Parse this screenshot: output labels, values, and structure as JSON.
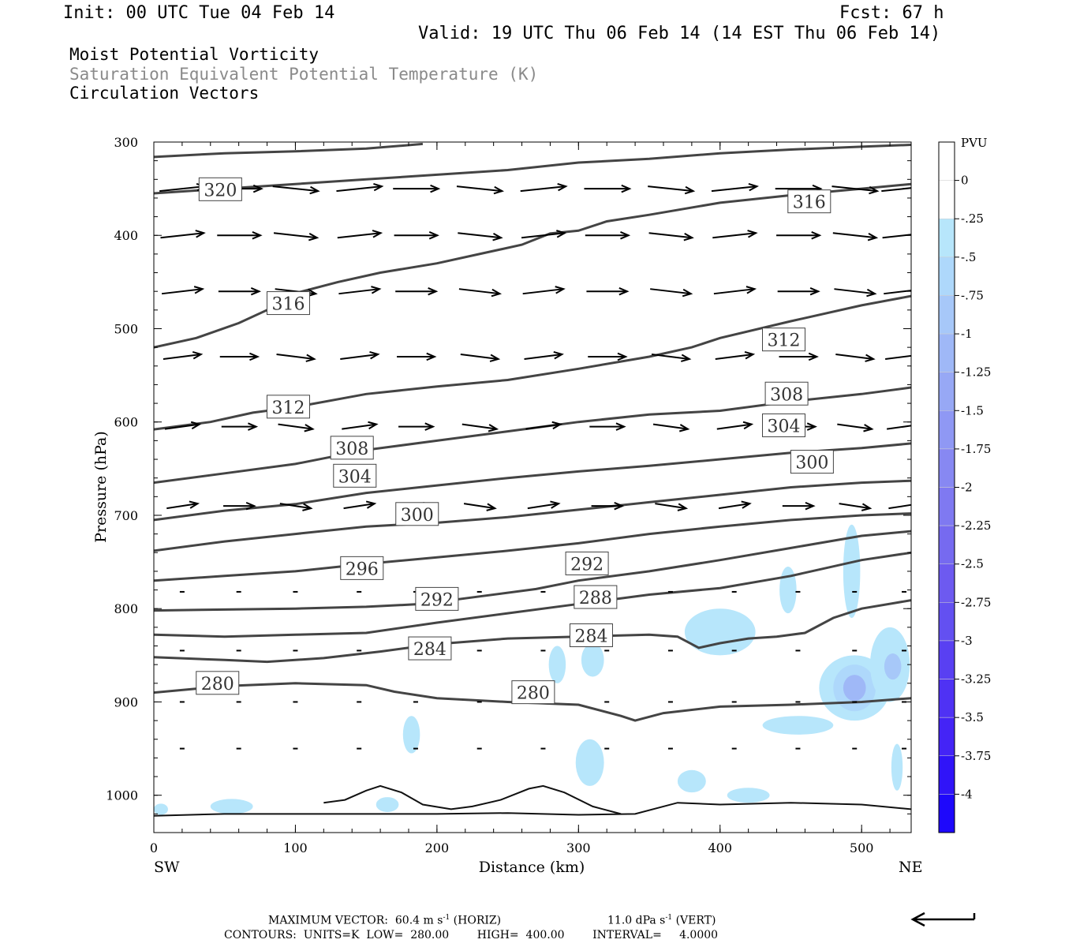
{
  "header": {
    "init": "Init: 00 UTC Tue 04 Feb 14",
    "fcst": "Fcst:   67 h",
    "valid": "Valid: 19 UTC Thu 06 Feb 14 (14 EST Thu 06 Feb 14)"
  },
  "fields": {
    "shaded": "Moist Potential Vorticity",
    "contour": "Saturation Equivalent Potential Temperature (K)",
    "vectors": "Circulation Vectors"
  },
  "footer": {
    "max_vector_label": "MAXIMUM VECTOR:",
    "max_horiz_value": "60.4",
    "max_horiz_unit": "m s",
    "max_horiz_tag": "(HORIZ)",
    "max_vert_value": "11.0",
    "max_vert_unit": "dPa s",
    "max_vert_tag": "(VERT)",
    "exponent": "-1",
    "contours_line": "CONTOURS:  UNITS=K  LOW=  280.00        HIGH=  400.00        INTERVAL=     4.0000"
  },
  "chart_data": {
    "type": "cross-section contour",
    "xlabel": "Distance (km)",
    "ylabel": "Pressure (hPa)",
    "x_ticks": [
      0,
      100,
      200,
      300,
      400,
      500
    ],
    "y_ticks": [
      300,
      400,
      500,
      600,
      700,
      800,
      900,
      1000
    ],
    "xlim": [
      0,
      535
    ],
    "ylim": [
      300,
      1040
    ],
    "x_end_labels": {
      "left": "SW",
      "right": "NE"
    },
    "colorbar": {
      "unit": "PVU",
      "levels": [
        "0",
        "-.25",
        "-.5",
        "-.75",
        "-1",
        "-1.25",
        "-1.5",
        "-1.75",
        "-2",
        "-2.25",
        "-2.5",
        "-2.75",
        "-3",
        "-3.25",
        "-3.5",
        "-3.75",
        "-4"
      ],
      "colors": [
        "#ffffff",
        "#ffffff",
        "#b7e6fb",
        "#aed8fb",
        "#a7c8f9",
        "#9fb8f7",
        "#97a8f5",
        "#8f98f4",
        "#8788f2",
        "#7f79f1",
        "#766af0",
        "#6d5af0",
        "#6350f1",
        "#5940f2",
        "#4f32f4",
        "#4424f6",
        "#3014f8",
        "#1e08fb"
      ]
    },
    "theta_es_contours": [
      {
        "label": "280",
        "points": [
          [
            0,
            890
          ],
          [
            50,
            883
          ],
          [
            100,
            880
          ],
          [
            150,
            882
          ],
          [
            170,
            889
          ],
          [
            200,
            896
          ],
          [
            250,
            900
          ],
          [
            300,
            903
          ],
          [
            330,
            915
          ],
          [
            340,
            920
          ],
          [
            360,
            912
          ],
          [
            400,
            905
          ],
          [
            450,
            903
          ],
          [
            500,
            900
          ],
          [
            535,
            896
          ]
        ],
        "label_at": [
          [
            45,
            880
          ],
          [
            268,
            890
          ]
        ]
      },
      {
        "label": "284",
        "points": [
          [
            0,
            852
          ],
          [
            50,
            855
          ],
          [
            80,
            857
          ],
          [
            120,
            853
          ],
          [
            160,
            846
          ],
          [
            200,
            838
          ],
          [
            250,
            832
          ],
          [
            300,
            830
          ],
          [
            350,
            828
          ],
          [
            370,
            830
          ],
          [
            385,
            842
          ],
          [
            400,
            837
          ],
          [
            420,
            832
          ],
          [
            440,
            830
          ],
          [
            460,
            826
          ],
          [
            480,
            810
          ],
          [
            500,
            800
          ],
          [
            535,
            791
          ]
        ],
        "label_at": [
          [
            195,
            843
          ],
          [
            309,
            829
          ]
        ]
      },
      {
        "label": "288",
        "points": [
          [
            0,
            828
          ],
          [
            50,
            830
          ],
          [
            100,
            828
          ],
          [
            150,
            826
          ],
          [
            200,
            815
          ],
          [
            250,
            805
          ],
          [
            300,
            795
          ],
          [
            350,
            785
          ],
          [
            400,
            778
          ],
          [
            450,
            765
          ],
          [
            500,
            748
          ],
          [
            535,
            740
          ]
        ],
        "label_at": [
          [
            312,
            788
          ]
        ]
      },
      {
        "label": "292",
        "points": [
          [
            0,
            802
          ],
          [
            50,
            801
          ],
          [
            100,
            800
          ],
          [
            150,
            798
          ],
          [
            190,
            795
          ],
          [
            230,
            787
          ],
          [
            270,
            779
          ],
          [
            300,
            770
          ],
          [
            350,
            760
          ],
          [
            400,
            748
          ],
          [
            450,
            735
          ],
          [
            500,
            722
          ],
          [
            535,
            717
          ]
        ],
        "label_at": [
          [
            200,
            790
          ],
          [
            306,
            752
          ]
        ]
      },
      {
        "label": "296",
        "points": [
          [
            0,
            770
          ],
          [
            50,
            765
          ],
          [
            100,
            760
          ],
          [
            150,
            752
          ],
          [
            200,
            745
          ],
          [
            250,
            738
          ],
          [
            300,
            730
          ],
          [
            350,
            720
          ],
          [
            400,
            712
          ],
          [
            450,
            705
          ],
          [
            500,
            700
          ],
          [
            535,
            698
          ]
        ],
        "label_at": [
          [
            147,
            757
          ]
        ]
      },
      {
        "label": "300",
        "points": [
          [
            0,
            738
          ],
          [
            50,
            728
          ],
          [
            100,
            720
          ],
          [
            150,
            712
          ],
          [
            200,
            708
          ],
          [
            250,
            702
          ],
          [
            300,
            694
          ],
          [
            350,
            686
          ],
          [
            400,
            678
          ],
          [
            450,
            670
          ],
          [
            500,
            665
          ],
          [
            535,
            663
          ]
        ],
        "label_at": [
          [
            186,
            699
          ],
          [
            465,
            643
          ]
        ]
      },
      {
        "label": "304",
        "points": [
          [
            0,
            705
          ],
          [
            50,
            695
          ],
          [
            100,
            688
          ],
          [
            150,
            676
          ],
          [
            200,
            668
          ],
          [
            250,
            660
          ],
          [
            300,
            653
          ],
          [
            350,
            647
          ],
          [
            400,
            640
          ],
          [
            450,
            633
          ],
          [
            500,
            628
          ],
          [
            535,
            623
          ]
        ],
        "label_at": [
          [
            142,
            658
          ],
          [
            445,
            604
          ]
        ]
      },
      {
        "label": "308",
        "points": [
          [
            0,
            665
          ],
          [
            50,
            655
          ],
          [
            100,
            645
          ],
          [
            150,
            630
          ],
          [
            200,
            620
          ],
          [
            250,
            610
          ],
          [
            300,
            600
          ],
          [
            350,
            592
          ],
          [
            400,
            588
          ],
          [
            450,
            578
          ],
          [
            500,
            570
          ],
          [
            535,
            563
          ]
        ],
        "label_at": [
          [
            140,
            628
          ],
          [
            447,
            570
          ]
        ]
      },
      {
        "label": "312",
        "points": [
          [
            0,
            608
          ],
          [
            40,
            600
          ],
          [
            70,
            590
          ],
          [
            100,
            584
          ],
          [
            150,
            570
          ],
          [
            200,
            562
          ],
          [
            250,
            555
          ],
          [
            300,
            543
          ],
          [
            350,
            530
          ],
          [
            380,
            520
          ],
          [
            400,
            510
          ],
          [
            450,
            492
          ],
          [
            500,
            475
          ],
          [
            535,
            465
          ]
        ],
        "label_at": [
          [
            95,
            584
          ],
          [
            445,
            512
          ]
        ]
      },
      {
        "label": "316",
        "points": [
          [
            0,
            520
          ],
          [
            30,
            510
          ],
          [
            60,
            494
          ],
          [
            80,
            480
          ],
          [
            100,
            462
          ],
          [
            130,
            450
          ],
          [
            160,
            440
          ],
          [
            200,
            430
          ],
          [
            230,
            420
          ],
          [
            260,
            410
          ],
          [
            280,
            398
          ],
          [
            300,
            395
          ],
          [
            320,
            385
          ],
          [
            350,
            378
          ],
          [
            400,
            365
          ],
          [
            450,
            357
          ],
          [
            500,
            350
          ],
          [
            535,
            345
          ]
        ],
        "label_at": [
          [
            95,
            473
          ],
          [
            463,
            364
          ]
        ]
      },
      {
        "label": "320",
        "points": [
          [
            0,
            355
          ],
          [
            50,
            350
          ],
          [
            100,
            345
          ],
          [
            150,
            340
          ],
          [
            200,
            335
          ],
          [
            250,
            330
          ],
          [
            300,
            322
          ],
          [
            350,
            318
          ],
          [
            400,
            312
          ],
          [
            450,
            308
          ],
          [
            500,
            305
          ],
          [
            535,
            303
          ]
        ],
        "label_at": [
          [
            47,
            351
          ]
        ]
      },
      {
        "label": "",
        "points": [
          [
            0,
            316
          ],
          [
            50,
            312
          ],
          [
            100,
            310
          ],
          [
            150,
            307
          ],
          [
            190,
            302
          ]
        ],
        "label_at": []
      }
    ],
    "surface_lines": [
      [
        [
          0,
          1022
        ],
        [
          50,
          1020
        ],
        [
          100,
          1020
        ],
        [
          150,
          1020
        ],
        [
          200,
          1020
        ],
        [
          250,
          1019
        ],
        [
          300,
          1021
        ],
        [
          340,
          1020
        ],
        [
          370,
          1008
        ],
        [
          400,
          1010
        ],
        [
          450,
          1008
        ],
        [
          500,
          1010
        ],
        [
          535,
          1015
        ]
      ],
      [
        [
          120,
          1008
        ],
        [
          135,
          1005
        ],
        [
          150,
          995
        ],
        [
          160,
          990
        ],
        [
          175,
          997
        ],
        [
          190,
          1010
        ],
        [
          210,
          1015
        ],
        [
          225,
          1012
        ],
        [
          245,
          1005
        ],
        [
          265,
          993
        ],
        [
          275,
          990
        ],
        [
          290,
          997
        ],
        [
          310,
          1012
        ],
        [
          330,
          1020
        ]
      ]
    ],
    "vectors": {
      "rows_hpa": [
        350,
        400,
        460,
        530,
        605,
        690,
        782,
        845,
        900,
        950
      ],
      "x_km": [
        20,
        60,
        100,
        145,
        185,
        230,
        275,
        320,
        365,
        410,
        455,
        495,
        530
      ],
      "note_speed_horiz_max": "60.4 m s-1",
      "note_speed_vert_max": "11.0 dPa s-1"
    },
    "mpv_regions": [
      {
        "level": "-.25",
        "x": 400,
        "p": 825,
        "rx": 25,
        "rp": 25
      },
      {
        "level": "-.25",
        "x": 495,
        "p": 885,
        "rx": 25,
        "rp": 35
      },
      {
        "level": "-.5",
        "x": 495,
        "p": 885,
        "rx": 15,
        "rp": 25
      },
      {
        "level": "-1",
        "x": 495,
        "p": 885,
        "rx": 8,
        "rp": 14
      },
      {
        "level": "-.25",
        "x": 520,
        "p": 860,
        "rx": 14,
        "rp": 40
      },
      {
        "level": "-.75",
        "x": 522,
        "p": 862,
        "rx": 6,
        "rp": 14
      },
      {
        "level": "-.25",
        "x": 493,
        "p": 760,
        "rx": 6,
        "rp": 50
      },
      {
        "level": "-.25",
        "x": 448,
        "p": 780,
        "rx": 6,
        "rp": 25
      },
      {
        "level": "-.25",
        "x": 308,
        "p": 965,
        "rx": 10,
        "rp": 25
      },
      {
        "level": "-.25",
        "x": 182,
        "p": 935,
        "rx": 6,
        "rp": 20
      },
      {
        "level": "-.25",
        "x": 455,
        "p": 925,
        "rx": 25,
        "rp": 10
      },
      {
        "level": "-.25",
        "x": 310,
        "p": 855,
        "rx": 8,
        "rp": 18
      },
      {
        "level": "-.25",
        "x": 285,
        "p": 860,
        "rx": 6,
        "rp": 20
      },
      {
        "level": "-.25",
        "x": 525,
        "p": 970,
        "rx": 4,
        "rp": 25
      },
      {
        "level": "-.25",
        "x": 380,
        "p": 985,
        "rx": 10,
        "rp": 12
      },
      {
        "level": "-.25",
        "x": 420,
        "p": 1000,
        "rx": 15,
        "rp": 8
      },
      {
        "level": "-.25",
        "x": 55,
        "p": 1012,
        "rx": 15,
        "rp": 8
      },
      {
        "level": "-.25",
        "x": 165,
        "p": 1010,
        "rx": 8,
        "rp": 8
      },
      {
        "level": "-.25",
        "x": 5,
        "p": 1015,
        "rx": 5,
        "rp": 6
      }
    ]
  }
}
